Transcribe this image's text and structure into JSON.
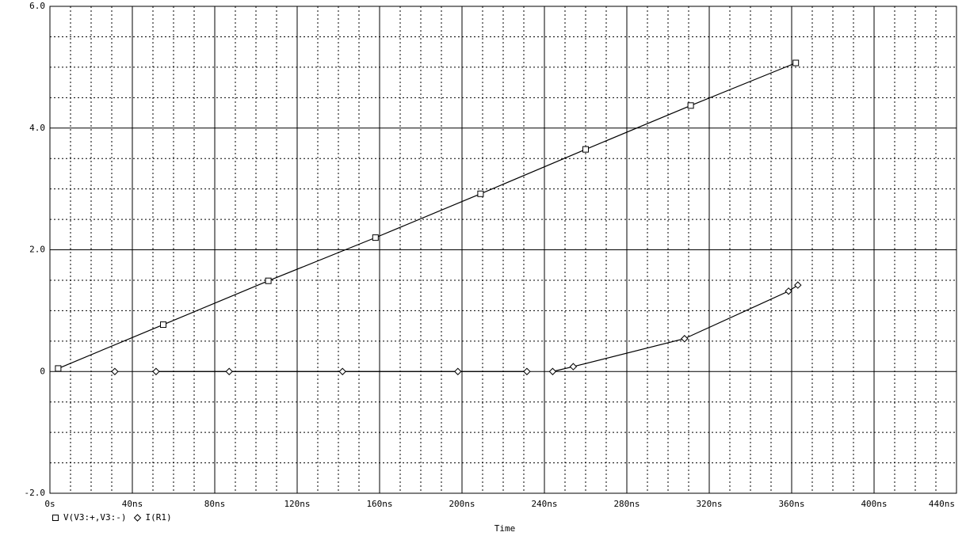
{
  "chart_data": {
    "type": "line",
    "x_label": "Time",
    "xlim": [
      0,
      440
    ],
    "ylim": [
      -2,
      6
    ],
    "xticks": [
      {
        "value": 0,
        "label": "0s"
      },
      {
        "value": 40,
        "label": "40ns"
      },
      {
        "value": 80,
        "label": "80ns"
      },
      {
        "value": 120,
        "label": "120ns"
      },
      {
        "value": 160,
        "label": "160ns"
      },
      {
        "value": 200,
        "label": "200ns"
      },
      {
        "value": 240,
        "label": "240ns"
      },
      {
        "value": 280,
        "label": "280ns"
      },
      {
        "value": 320,
        "label": "320ns"
      },
      {
        "value": 360,
        "label": "360ns"
      },
      {
        "value": 400,
        "label": "400ns"
      },
      {
        "value": 440,
        "label": "440ns"
      }
    ],
    "yticks": [
      {
        "value": -2,
        "label": "-2.0"
      },
      0,
      {
        "value": 2,
        "label": "2.0"
      },
      {
        "value": 4,
        "label": "4.0"
      },
      {
        "value": 6,
        "label": "6.0"
      }
    ],
    "grid": true,
    "series": [
      {
        "name": "V(V3:+,V3:-)",
        "color": "#000000",
        "marker": "square",
        "x": [
          4,
          55,
          106,
          158,
          209,
          260,
          311,
          362
        ],
        "values": [
          0.05,
          0.77,
          1.49,
          2.2,
          2.92,
          3.65,
          4.37,
          5.07
        ]
      },
      {
        "name": "I(R1)",
        "color": "#000000",
        "marker": "diamond",
        "x": [
          31.5,
          40,
          51.5,
          87,
          142,
          198,
          231.5,
          238,
          244,
          254,
          308,
          358.5,
          363
        ],
        "values": [
          0,
          null,
          0,
          0,
          0,
          0,
          0,
          null,
          0,
          0.08,
          0.54,
          1.32,
          1.42
        ]
      }
    ]
  }
}
